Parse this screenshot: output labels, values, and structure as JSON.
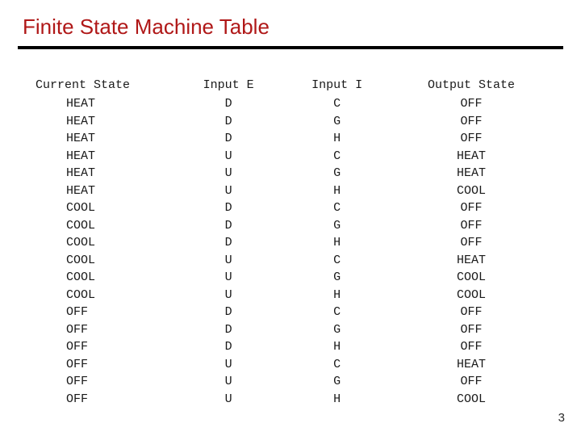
{
  "title": "Finite State Machine Table",
  "title_color": "#b01818",
  "rule_color": "#000000",
  "page_number": "3",
  "table": {
    "type": "table",
    "font_family": "Courier New",
    "header_fontsize": 15,
    "cell_fontsize": 15,
    "text_color": "#1a1a1a",
    "background_color": "#ffffff",
    "columns": [
      {
        "label": "Current State",
        "width_pct": 28,
        "align": "left"
      },
      {
        "label": "Input E",
        "width_pct": 20,
        "align": "center"
      },
      {
        "label": "Input I",
        "width_pct": 22,
        "align": "center"
      },
      {
        "label": "Output State",
        "width_pct": 30,
        "align": "center"
      }
    ],
    "rows": [
      [
        "HEAT",
        "D",
        "C",
        "OFF"
      ],
      [
        "HEAT",
        "D",
        "G",
        "OFF"
      ],
      [
        "HEAT",
        "D",
        "H",
        "OFF"
      ],
      [
        "HEAT",
        "U",
        "C",
        "HEAT"
      ],
      [
        "HEAT",
        "U",
        "G",
        "HEAT"
      ],
      [
        "HEAT",
        "U",
        "H",
        "COOL"
      ],
      [
        "COOL",
        "D",
        "C",
        "OFF"
      ],
      [
        "COOL",
        "D",
        "G",
        "OFF"
      ],
      [
        "COOL",
        "D",
        "H",
        "OFF"
      ],
      [
        "COOL",
        "U",
        "C",
        "HEAT"
      ],
      [
        "COOL",
        "U",
        "G",
        "COOL"
      ],
      [
        "COOL",
        "U",
        "H",
        "COOL"
      ],
      [
        "OFF",
        "D",
        "C",
        "OFF"
      ],
      [
        "OFF",
        "D",
        "G",
        "OFF"
      ],
      [
        "OFF",
        "D",
        "H",
        "OFF"
      ],
      [
        "OFF",
        "U",
        "C",
        "HEAT"
      ],
      [
        "OFF",
        "U",
        "G",
        "OFF"
      ],
      [
        "OFF",
        "U",
        "H",
        "COOL"
      ]
    ]
  }
}
